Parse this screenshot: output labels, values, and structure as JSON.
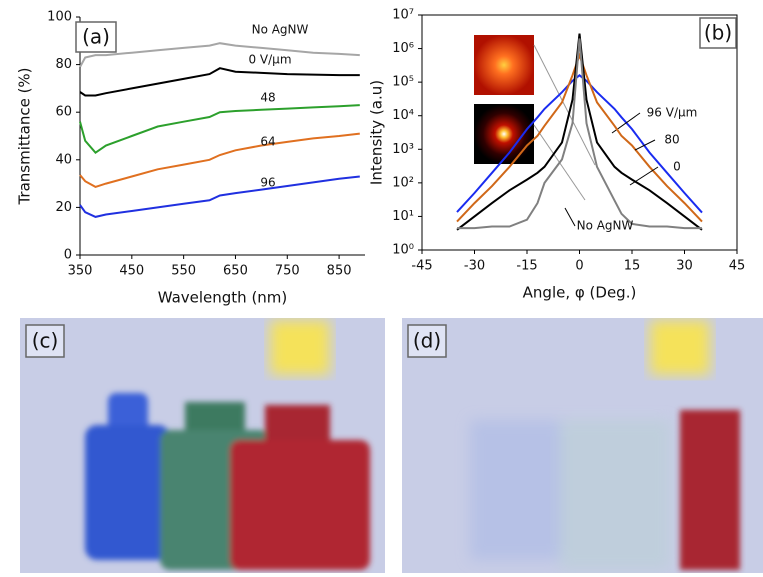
{
  "chart_data": [
    {
      "type": "line",
      "panel_label": "(a)",
      "x_label": "Wavelength (nm)",
      "y_label": "Transmittance (%)",
      "x": [
        350,
        360,
        380,
        400,
        450,
        500,
        550,
        600,
        620,
        650,
        700,
        750,
        800,
        850,
        890
      ],
      "xlim": [
        350,
        900
      ],
      "xticks": [
        350,
        450,
        550,
        650,
        750,
        850
      ],
      "ylim": [
        0,
        100
      ],
      "yticks": [
        0,
        20,
        40,
        60,
        80,
        100
      ],
      "log": false,
      "series": [
        {
          "name": "No AgNW",
          "color": "#a6a6a6",
          "values": [
            79,
            83,
            84,
            84,
            85,
            86,
            87,
            88,
            89,
            88,
            87,
            86,
            85,
            84.5,
            84
          ]
        },
        {
          "name": "0 V/μm",
          "color": "#000000",
          "values": [
            68.5,
            67,
            67,
            68,
            70,
            72,
            74,
            76,
            78.5,
            77,
            76.5,
            76,
            75.8,
            75.6,
            75.6
          ]
        },
        {
          "name": "48",
          "color": "#2ca02c",
          "values": [
            56,
            48,
            43,
            46,
            50,
            54,
            56,
            58,
            60,
            60.5,
            61,
            61.5,
            62,
            62.5,
            63
          ]
        },
        {
          "name": "64",
          "color": "#e07020",
          "values": [
            33.6,
            31,
            28.6,
            30,
            33,
            36,
            38,
            40,
            42,
            44,
            46,
            47.5,
            49,
            50,
            51
          ]
        },
        {
          "name": "96",
          "color": "#2030e0",
          "values": [
            21,
            18,
            16,
            17,
            18.5,
            20,
            21.5,
            23,
            25,
            26,
            27.5,
            29,
            30.5,
            32,
            33
          ]
        }
      ]
    },
    {
      "type": "line",
      "panel_label": "(b)",
      "x_label": "Angle, φ (Deg.)",
      "y_label": "Intensity (a.u)",
      "x": [
        -35,
        -30,
        -25,
        -20,
        -15,
        -12,
        -10,
        -5,
        -2,
        0,
        2,
        5,
        10,
        12,
        15,
        20,
        25,
        30,
        35
      ],
      "xlim": [
        -45,
        45
      ],
      "xticks": [
        -45,
        -30,
        -15,
        0,
        15,
        30,
        45
      ],
      "ylim": [
        1,
        10000000
      ],
      "log": true,
      "yticks": [
        {
          "value": 1,
          "label": "10⁰"
        },
        {
          "value": 10,
          "label": "10¹"
        },
        {
          "value": 100,
          "label": "10²"
        },
        {
          "value": 1000,
          "label": "10³"
        },
        {
          "value": 10000,
          "label": "10⁴"
        },
        {
          "value": 100000,
          "label": "10⁵"
        },
        {
          "value": 1000000,
          "label": "10⁶"
        },
        {
          "value": 10000000,
          "label": "10⁷"
        }
      ],
      "series": [
        {
          "name": "96 V/μm",
          "color": "#1a2cf0",
          "values": [
            13.5,
            50,
            200,
            800,
            4000,
            9000,
            16000,
            50000,
            110000,
            160000,
            110000,
            50000,
            16000,
            9000,
            4000,
            800,
            200,
            50,
            13
          ]
        },
        {
          "name": "80",
          "color": "#d06818",
          "values": [
            7,
            25,
            80,
            300,
            1300,
            2500,
            5000,
            25000,
            160000,
            630000,
            160000,
            25000,
            5000,
            2500,
            1300,
            300,
            80,
            25,
            7
          ]
        },
        {
          "name": "0",
          "color": "#000000",
          "values": [
            4,
            10,
            25,
            60,
            125,
            200,
            300,
            1600,
            30000,
            2800000,
            30000,
            1600,
            300,
            200,
            125,
            60,
            25,
            10,
            4
          ]
        },
        {
          "name": "No AgNW",
          "color": "#808080",
          "values": [
            4.5,
            4.5,
            5,
            5,
            8,
            25,
            100,
            500,
            6000,
            2000000,
            6000,
            300,
            30,
            12,
            6,
            5,
            5,
            4.5,
            4.5
          ]
        }
      ]
    }
  ],
  "photos": [
    {
      "label": "(c)"
    },
    {
      "label": "(d)"
    }
  ]
}
